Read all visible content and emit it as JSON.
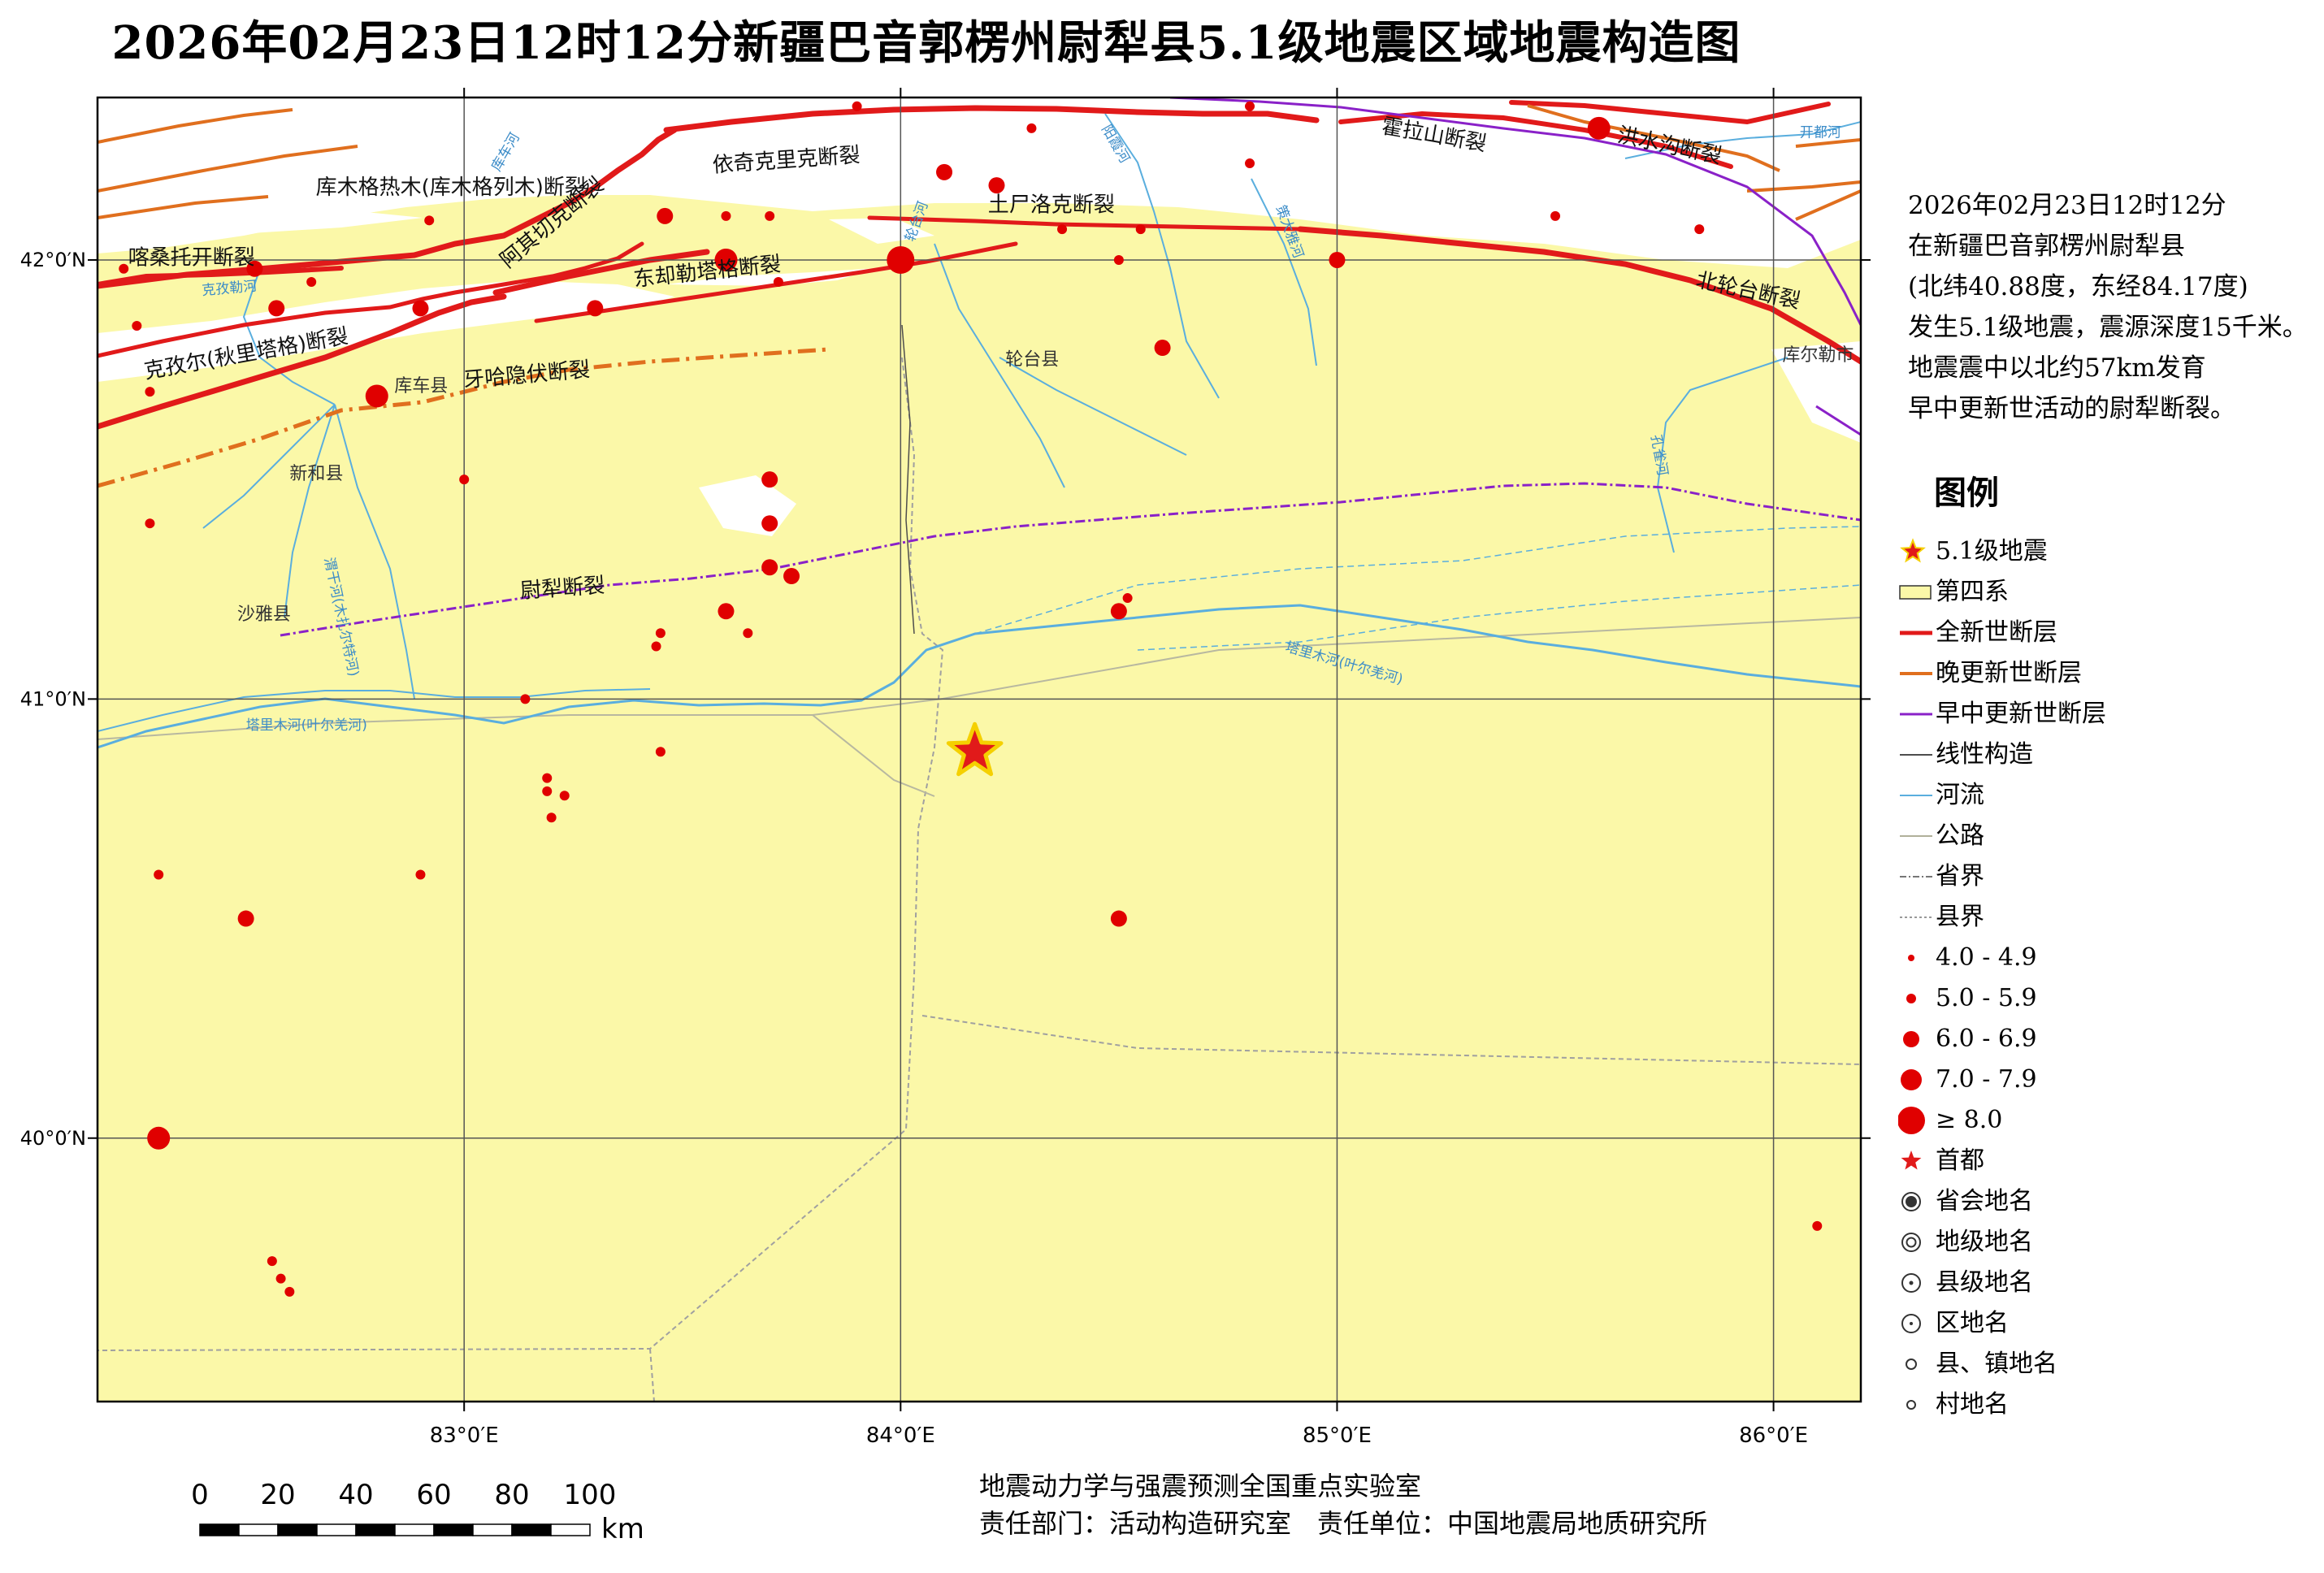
{
  "title": "2026年02月23日12时12分新疆巴音郭楞州尉犁县5.1级地震区域地震构造图",
  "map": {
    "extent": {
      "lon_min": 82.16,
      "lon_max": 86.2,
      "lat_min": 39.4,
      "lat_max": 42.37
    },
    "lon_ticks": [
      {
        "value": 83,
        "label": "83°0′E"
      },
      {
        "value": 84,
        "label": "84°0′E"
      },
      {
        "value": 85,
        "label": "85°0′E"
      },
      {
        "value": 86,
        "label": "86°0′E"
      }
    ],
    "lat_ticks": [
      {
        "value": 42,
        "label": "42°0′N"
      },
      {
        "value": 41,
        "label": "41°0′N"
      },
      {
        "value": 40,
        "label": "40°0′N"
      }
    ],
    "colors": {
      "quaternary_fill": "#fbf8a8",
      "bedrock_fill": "#ffffff",
      "holocene_fault": "#e11a1a",
      "late_pleistocene_fault": "#e06f1e",
      "early_middle_pleistocene_fault": "#8a21c8",
      "river": "#5aaede",
      "road": "#b0b09a",
      "county_boundary": "#999999",
      "epicenter": "#e11a1a",
      "epicenter_outline": "#f5d000",
      "earthquake": "#e00000"
    },
    "epicenter": {
      "lon": 84.17,
      "lat": 40.88,
      "magnitude": 5.1
    },
    "earthquakes": [
      {
        "lon": 82.22,
        "lat": 41.98,
        "m": 4.5
      },
      {
        "lon": 82.25,
        "lat": 41.85,
        "m": 4.3
      },
      {
        "lon": 82.28,
        "lat": 41.7,
        "m": 4.2
      },
      {
        "lon": 82.28,
        "lat": 41.4,
        "m": 4.2
      },
      {
        "lon": 82.52,
        "lat": 41.98,
        "m": 5.8
      },
      {
        "lon": 82.57,
        "lat": 41.89,
        "m": 5.5
      },
      {
        "lon": 82.65,
        "lat": 41.95,
        "m": 4.4
      },
      {
        "lon": 82.8,
        "lat": 41.69,
        "m": 6.5
      },
      {
        "lon": 82.9,
        "lat": 41.89,
        "m": 5.2
      },
      {
        "lon": 82.92,
        "lat": 42.09,
        "m": 4.3
      },
      {
        "lon": 83.0,
        "lat": 41.5,
        "m": 4.3
      },
      {
        "lon": 83.3,
        "lat": 41.89,
        "m": 5.3
      },
      {
        "lon": 83.46,
        "lat": 42.1,
        "m": 5.2
      },
      {
        "lon": 83.6,
        "lat": 42.0,
        "m": 6.3
      },
      {
        "lon": 83.6,
        "lat": 42.1,
        "m": 4.4
      },
      {
        "lon": 83.7,
        "lat": 42.1,
        "m": 4.4
      },
      {
        "lon": 83.72,
        "lat": 41.95,
        "m": 4.4
      },
      {
        "lon": 83.9,
        "lat": 42.35,
        "m": 4.3
      },
      {
        "lon": 84.0,
        "lat": 42.0,
        "m": 7.0
      },
      {
        "lon": 84.1,
        "lat": 42.2,
        "m": 5.3
      },
      {
        "lon": 84.22,
        "lat": 42.17,
        "m": 5.3
      },
      {
        "lon": 84.3,
        "lat": 42.3,
        "m": 4.3
      },
      {
        "lon": 84.37,
        "lat": 42.07,
        "m": 4.4
      },
      {
        "lon": 84.5,
        "lat": 42.0,
        "m": 4.3
      },
      {
        "lon": 84.55,
        "lat": 42.07,
        "m": 4.3
      },
      {
        "lon": 84.6,
        "lat": 41.8,
        "m": 5.2
      },
      {
        "lon": 84.8,
        "lat": 42.22,
        "m": 4.3
      },
      {
        "lon": 84.8,
        "lat": 42.35,
        "m": 4.3
      },
      {
        "lon": 85.0,
        "lat": 42.0,
        "m": 5.2
      },
      {
        "lon": 85.5,
        "lat": 42.1,
        "m": 4.3
      },
      {
        "lon": 85.6,
        "lat": 42.3,
        "m": 6.1
      },
      {
        "lon": 85.83,
        "lat": 42.07,
        "m": 4.3
      },
      {
        "lon": 83.7,
        "lat": 41.5,
        "m": 5.2
      },
      {
        "lon": 83.7,
        "lat": 41.4,
        "m": 5.0
      },
      {
        "lon": 83.7,
        "lat": 41.3,
        "m": 5.5
      },
      {
        "lon": 83.75,
        "lat": 41.28,
        "m": 5.0
      },
      {
        "lon": 83.6,
        "lat": 41.2,
        "m": 5.5
      },
      {
        "lon": 83.45,
        "lat": 41.15,
        "m": 4.3
      },
      {
        "lon": 83.44,
        "lat": 41.12,
        "m": 4.2
      },
      {
        "lon": 83.65,
        "lat": 41.15,
        "m": 4.2
      },
      {
        "lon": 84.5,
        "lat": 41.2,
        "m": 5.2
      },
      {
        "lon": 84.52,
        "lat": 41.23,
        "m": 4.3
      },
      {
        "lon": 83.14,
        "lat": 41.0,
        "m": 4.3
      },
      {
        "lon": 83.45,
        "lat": 40.88,
        "m": 4.5
      },
      {
        "lon": 83.19,
        "lat": 40.82,
        "m": 4.3
      },
      {
        "lon": 83.19,
        "lat": 40.79,
        "m": 4.3
      },
      {
        "lon": 83.2,
        "lat": 40.73,
        "m": 4.3
      },
      {
        "lon": 83.23,
        "lat": 40.78,
        "m": 4.3
      },
      {
        "lon": 82.3,
        "lat": 40.6,
        "m": 4.3
      },
      {
        "lon": 82.9,
        "lat": 40.6,
        "m": 4.3
      },
      {
        "lon": 82.5,
        "lat": 40.5,
        "m": 5.3
      },
      {
        "lon": 84.5,
        "lat": 40.5,
        "m": 5.3
      },
      {
        "lon": 82.3,
        "lat": 40.0,
        "m": 6.3
      },
      {
        "lon": 82.56,
        "lat": 39.72,
        "m": 4.2
      },
      {
        "lon": 82.58,
        "lat": 39.68,
        "m": 4.2
      },
      {
        "lon": 82.6,
        "lat": 39.65,
        "m": 4.2
      },
      {
        "lon": 86.1,
        "lat": 39.8,
        "m": 4.3
      }
    ],
    "fault_labels": [
      {
        "text": "库木格热木(库木格列木)断裂",
        "lon": 82.66,
        "lat": 42.15,
        "rot": 0
      },
      {
        "text": "依奇克里克断裂",
        "lon": 83.57,
        "lat": 42.2,
        "rot": -4
      },
      {
        "text": "土尸洛克断裂",
        "lon": 84.2,
        "lat": 42.11,
        "rot": 0
      },
      {
        "text": "霍拉山断裂",
        "lon": 85.1,
        "lat": 42.29,
        "rot": 10
      },
      {
        "text": "洪水沟断裂",
        "lon": 85.64,
        "lat": 42.27,
        "rot": 12
      },
      {
        "text": "喀桑托开断裂",
        "lon": 82.23,
        "lat": 41.99,
        "rot": 0
      },
      {
        "text": "阿其切克断裂",
        "lon": 83.1,
        "lat": 41.98,
        "rot": -40
      },
      {
        "text": "东却勒塔格断裂",
        "lon": 83.39,
        "lat": 41.94,
        "rot": -6
      },
      {
        "text": "北轮台断裂",
        "lon": 85.82,
        "lat": 41.94,
        "rot": 12
      },
      {
        "text": "克孜尔(秋里塔格)断裂",
        "lon": 82.27,
        "lat": 41.73,
        "rot": -10
      },
      {
        "text": "牙哈隐伏断裂",
        "lon": 83.0,
        "lat": 41.71,
        "rot": -5
      },
      {
        "text": "尉犁断裂",
        "lon": 83.13,
        "lat": 41.23,
        "rot": -4
      }
    ],
    "place_labels": [
      {
        "text": "轮台县",
        "lon": 84.24,
        "lat": 41.76
      },
      {
        "text": "库车县",
        "lon": 82.84,
        "lat": 41.7
      },
      {
        "text": "新和县",
        "lon": 82.6,
        "lat": 41.5
      },
      {
        "text": "沙雅县",
        "lon": 82.48,
        "lat": 41.18
      },
      {
        "text": "库尔勒市",
        "lon": 86.02,
        "lat": 41.77
      }
    ],
    "river_labels": [
      {
        "text": "塔里木河(叶尔羌河)",
        "lon": 84.88,
        "lat": 41.11,
        "rot": 16
      },
      {
        "text": "塔里木河(叶尔羌河)",
        "lon": 82.5,
        "lat": 40.93,
        "rot": 0
      },
      {
        "text": "渭干河(木扎尔特河)",
        "lon": 82.68,
        "lat": 41.32,
        "rot": 78
      },
      {
        "text": "克孜勒河",
        "lon": 82.4,
        "lat": 41.92,
        "rot": -5
      },
      {
        "text": "库车河",
        "lon": 83.08,
        "lat": 42.2,
        "rot": -60
      },
      {
        "text": "轮台河",
        "lon": 84.03,
        "lat": 42.04,
        "rot": -70
      },
      {
        "text": "阳霞河",
        "lon": 84.46,
        "lat": 42.3,
        "rot": 60
      },
      {
        "text": "策大雅河",
        "lon": 84.86,
        "lat": 42.12,
        "rot": 70
      },
      {
        "text": "开都河",
        "lon": 86.06,
        "lat": 42.28,
        "rot": 0
      },
      {
        "text": "孔雀河",
        "lon": 85.72,
        "lat": 41.6,
        "rot": 80
      }
    ]
  },
  "info": [
    "2026年02月23日12时12分",
    "在新疆巴音郭楞州尉犁县",
    "(北纬40.88度，东经84.17度)",
    "发生5.1级地震，震源深度15千米。",
    "地震震中以北约57km发育",
    "早中更新世活动的尉犁断裂。"
  ],
  "legend": {
    "title": "图例",
    "items": [
      {
        "symbol": "star",
        "label": "5.1级地震"
      },
      {
        "symbol": "quaternary",
        "label": "第四系"
      },
      {
        "symbol": "holocene",
        "label": "全新世断层"
      },
      {
        "symbol": "late_pleistocene",
        "label": "晚更新世断层"
      },
      {
        "symbol": "early_middle",
        "label": "早中更新世断层"
      },
      {
        "symbol": "linear",
        "label": "线性构造"
      },
      {
        "symbol": "river",
        "label": "河流"
      },
      {
        "symbol": "road",
        "label": "公路"
      },
      {
        "symbol": "provincial",
        "label": "省界"
      },
      {
        "symbol": "county",
        "label": "县界"
      },
      {
        "symbol": "m4",
        "label": "4.0 - 4.9"
      },
      {
        "symbol": "m5",
        "label": "5.0 - 5.9"
      },
      {
        "symbol": "m6",
        "label": "6.0 - 6.9"
      },
      {
        "symbol": "m7",
        "label": "7.0 - 7.9"
      },
      {
        "symbol": "m8",
        "label": "≥ 8.0"
      },
      {
        "symbol": "capital",
        "label": "首都"
      },
      {
        "symbol": "provincial_capital",
        "label": "省会地名"
      },
      {
        "symbol": "prefecture",
        "label": "地级地名"
      },
      {
        "symbol": "county_seat",
        "label": "县级地名"
      },
      {
        "symbol": "district",
        "label": "区地名"
      },
      {
        "symbol": "town",
        "label": "县、镇地名"
      },
      {
        "symbol": "village",
        "label": "村地名"
      }
    ]
  },
  "scale_bar": {
    "ticks": [
      "0",
      "20",
      "40",
      "60",
      "80",
      "100"
    ],
    "unit": "km"
  },
  "credits": {
    "line1": "地震动力学与强震预测全国重点实验室",
    "line2": "责任部门：活动构造研究室　责任单位：中国地震局地质研究所"
  }
}
